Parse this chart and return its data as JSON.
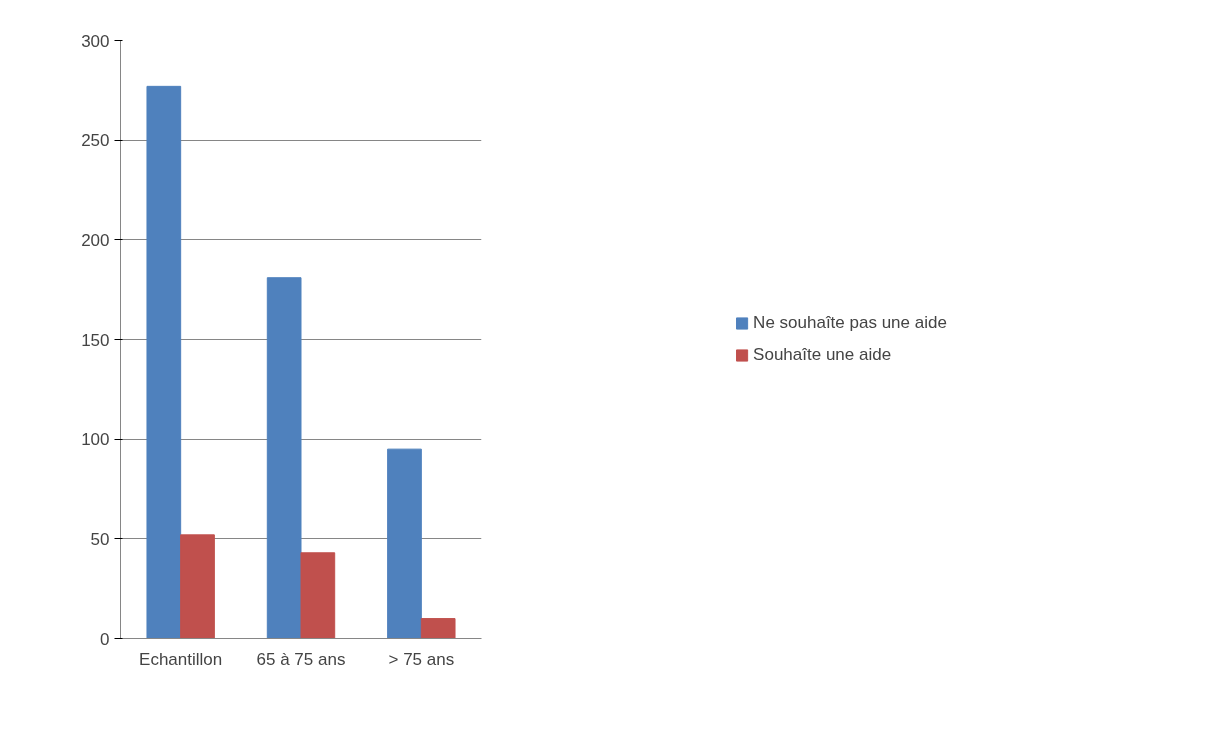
{
  "chart_data": {
    "type": "bar",
    "categories": [
      "Echantillon",
      "65 à 75 ans",
      "> 75 ans"
    ],
    "series": [
      {
        "name": "Ne souhaîte pas une aide",
        "color": "#4f81bd",
        "values": [
          277,
          181,
          95
        ]
      },
      {
        "name": "Souhaîte une aide",
        "color": "#c0504d",
        "values": [
          52,
          43,
          10
        ]
      }
    ],
    "ylim": [
      0,
      300
    ],
    "yticks": [
      0,
      50,
      100,
      150,
      200,
      250,
      300
    ],
    "grid": "y",
    "legend": "right"
  }
}
